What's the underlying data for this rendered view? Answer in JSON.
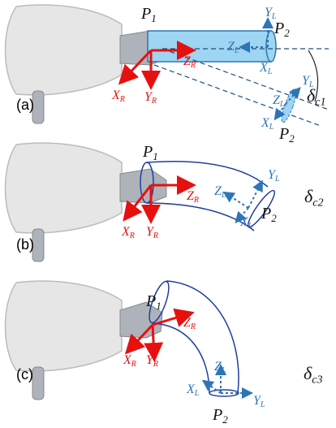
{
  "panels": [
    {
      "label": "(a)",
      "texts": [
        {
          "main": "P",
          "sub": "1"
        },
        {
          "main": "P",
          "sub": "2"
        },
        {
          "main": "Y",
          "sub": "L"
        },
        {
          "main": "Z",
          "sub": "L"
        },
        {
          "main": "X",
          "sub": "L"
        },
        {
          "main": "Z",
          "sub": "R"
        },
        {
          "main": "X",
          "sub": "R"
        },
        {
          "main": "Y",
          "sub": "R"
        },
        {
          "main": "Y",
          "sub": "L"
        },
        {
          "main": "Z",
          "sub": "L"
        },
        {
          "main": "X",
          "sub": "L"
        },
        {
          "main": "P",
          "sub": "2"
        },
        {
          "main": "δ",
          "sub": "c1"
        }
      ]
    },
    {
      "label": "(b)",
      "texts": [
        {
          "main": "P",
          "sub": "1"
        },
        {
          "main": "Z",
          "sub": "R"
        },
        {
          "main": "X",
          "sub": "R"
        },
        {
          "main": "Y",
          "sub": "R"
        },
        {
          "main": "Z",
          "sub": "L"
        },
        {
          "main": "Y",
          "sub": "L"
        },
        {
          "main": "X",
          "sub": "L"
        },
        {
          "main": "P",
          "sub": "2"
        },
        {
          "main": "δ",
          "sub": "c2"
        }
      ]
    },
    {
      "label": "(c)",
      "texts": [
        {
          "main": "P",
          "sub": "1"
        },
        {
          "main": "Z",
          "sub": "R"
        },
        {
          "main": "X",
          "sub": "R"
        },
        {
          "main": "Y",
          "sub": "R"
        },
        {
          "main": "Z",
          "sub": "L"
        },
        {
          "main": "X",
          "sub": "L"
        },
        {
          "main": "Y",
          "sub": "L"
        },
        {
          "main": "P",
          "sub": "2"
        },
        {
          "main": "δ",
          "sub": "c3"
        }
      ]
    }
  ]
}
